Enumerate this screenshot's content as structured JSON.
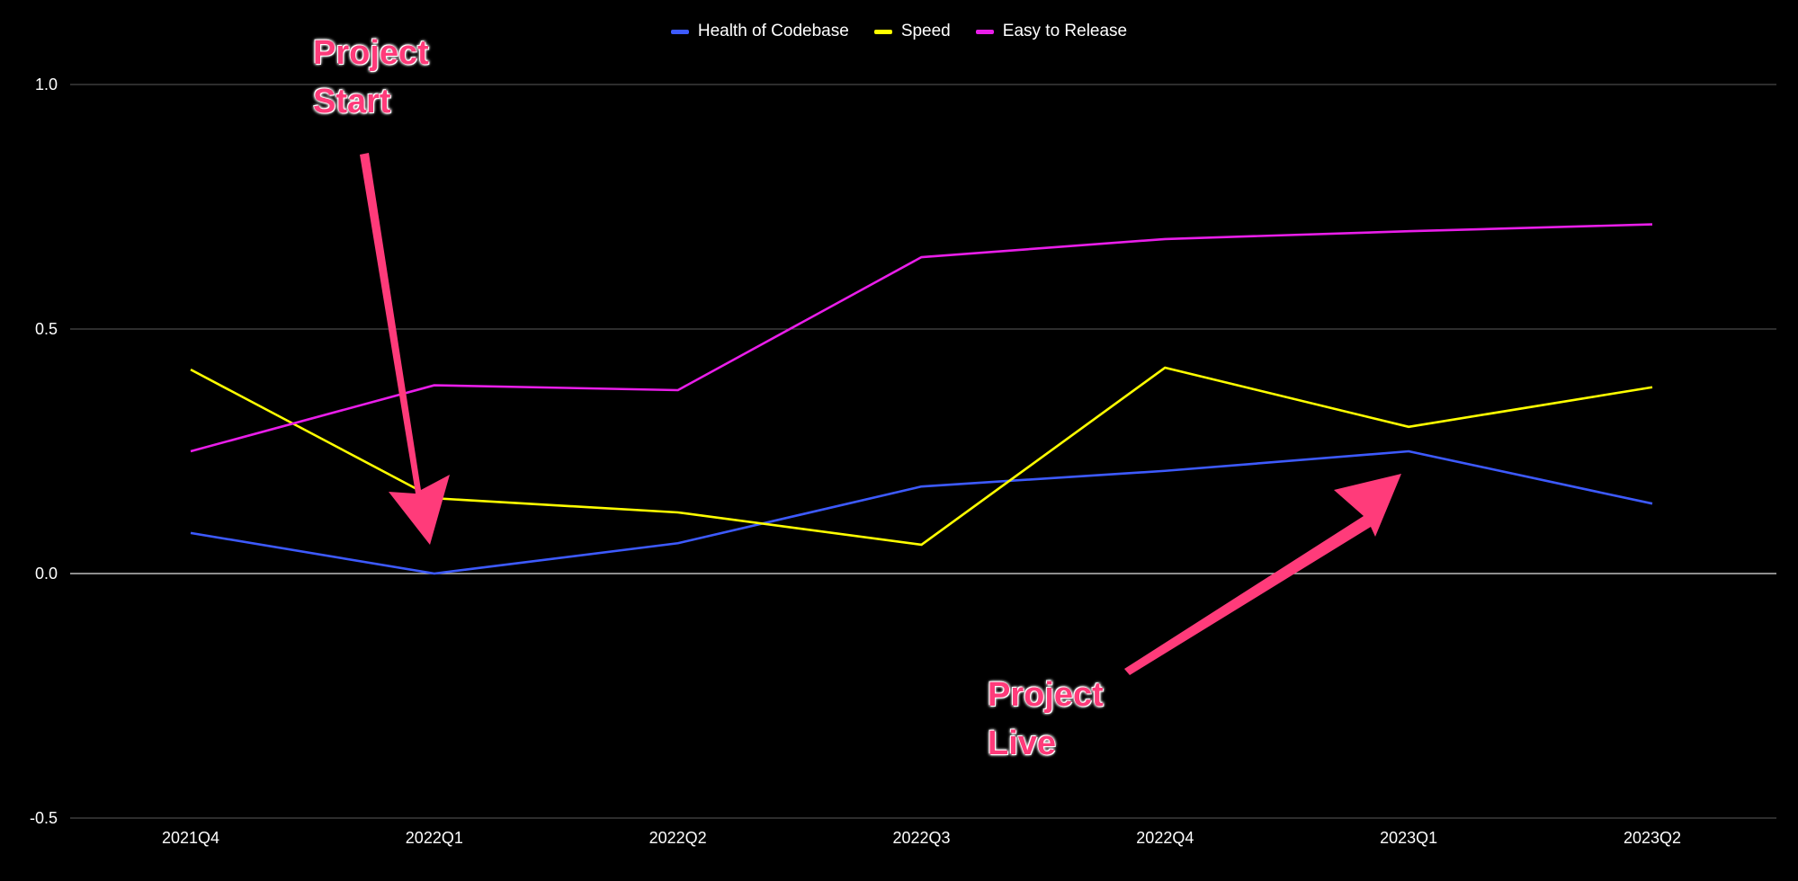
{
  "chart_data": {
    "type": "line",
    "title": "",
    "xlabel": "",
    "ylabel": "",
    "categories": [
      "2021Q4",
      "2022Q1",
      "2022Q2",
      "2022Q3",
      "2022Q4",
      "2023Q1",
      "2023Q2"
    ],
    "series": [
      {
        "name": "Health of Codebase",
        "color": "#3d5afe",
        "values": [
          0.083,
          0.0,
          0.062,
          0.178,
          0.21,
          0.25,
          0.143
        ]
      },
      {
        "name": "Speed",
        "color": "#ffff00",
        "values": [
          0.417,
          0.154,
          0.125,
          0.059,
          0.421,
          0.3,
          0.381
        ]
      },
      {
        "name": "Easy to Release",
        "color": "#e91ee9",
        "values": [
          0.25,
          0.385,
          0.375,
          0.647,
          0.684,
          0.7,
          0.714
        ]
      }
    ],
    "ylim": [
      -0.5,
      1.0
    ],
    "yticks": [
      -0.5,
      0.0,
      0.5,
      1.0
    ],
    "ytick_labels": [
      "-0.5",
      "0.0",
      "0.5",
      "1.0"
    ],
    "grid": true,
    "legend_position": "top-center",
    "annotations": [
      {
        "lines": [
          "Project",
          "Start"
        ],
        "points_to": "2022Q1"
      },
      {
        "lines": [
          "Project",
          "Live"
        ],
        "points_to": "2023Q1"
      }
    ]
  }
}
